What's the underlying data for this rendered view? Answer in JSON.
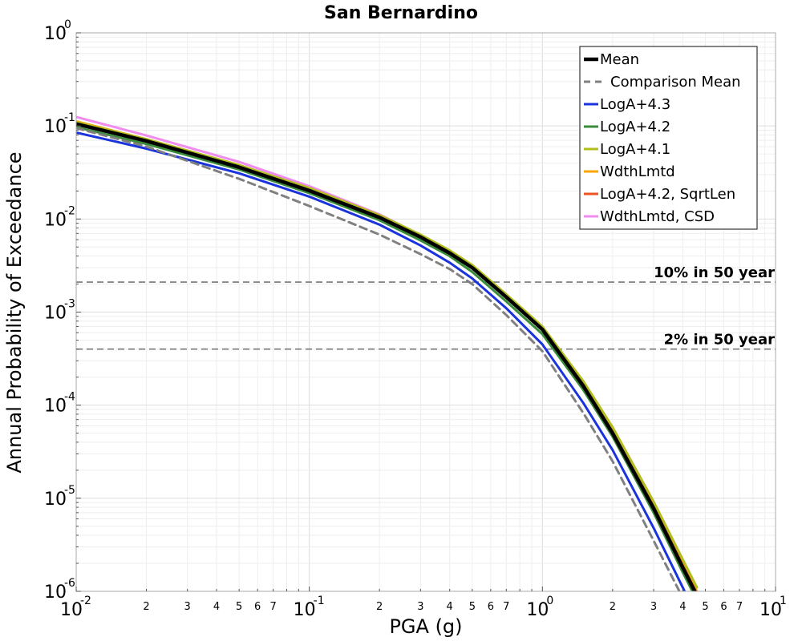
{
  "chart_data": {
    "type": "line",
    "title": "San Bernardino",
    "xlabel": "PGA (g)",
    "ylabel": "Annual Probability of Exceedance",
    "xscale": "log",
    "yscale": "log",
    "xlim": [
      0.01,
      10
    ],
    "ylim": [
      1e-06,
      1
    ],
    "grid": true,
    "legend_position": "top-right",
    "x_ticks": [
      {
        "base": "10",
        "exp": "-2"
      },
      {
        "base": "10",
        "exp": "-1"
      },
      {
        "base": "10",
        "exp": "0"
      },
      {
        "base": "10",
        "exp": "1"
      }
    ],
    "y_ticks": [
      {
        "base": "10",
        "exp": "0"
      },
      {
        "base": "10",
        "exp": "-1"
      },
      {
        "base": "10",
        "exp": "-2"
      },
      {
        "base": "10",
        "exp": "-3"
      },
      {
        "base": "10",
        "exp": "-4"
      },
      {
        "base": "10",
        "exp": "-5"
      },
      {
        "base": "10",
        "exp": "-6"
      }
    ],
    "x_minor_labels": [
      "2",
      "3",
      "4",
      "5",
      "6",
      "7"
    ],
    "reference_lines": [
      {
        "label": "10% in 50 year",
        "y": 0.0021,
        "color": "#777777"
      },
      {
        "label": "2% in 50 year",
        "y": 0.0004,
        "color": "#777777"
      }
    ],
    "series": [
      {
        "name": "WdthLmtd, CSD",
        "color": "#f08cf0",
        "dash": false,
        "x": [
          0.01,
          0.02,
          0.05,
          0.1,
          0.2,
          0.3,
          0.4,
          0.5,
          0.7,
          1.0,
          1.5,
          2.0,
          3.0,
          4.0,
          4.6
        ],
        "y": [
          0.125,
          0.079,
          0.041,
          0.0225,
          0.0112,
          0.0067,
          0.0045,
          0.0031,
          0.0015,
          0.00066,
          0.00016,
          5e-05,
          7.5e-06,
          1.8e-06,
          9e-07
        ]
      },
      {
        "name": "WdthLmtd",
        "color": "#ffa500",
        "dash": false,
        "x": [
          0.01,
          0.02,
          0.05,
          0.1,
          0.2,
          0.3,
          0.4,
          0.5,
          0.7,
          1.0,
          1.5,
          2.0,
          3.0,
          4.0,
          4.6
        ],
        "y": [
          0.112,
          0.072,
          0.038,
          0.0212,
          0.0108,
          0.0066,
          0.0045,
          0.0031,
          0.0015,
          0.00068,
          0.00017,
          5.5e-05,
          8.5e-06,
          2e-06,
          1e-06
        ]
      },
      {
        "name": "LogA+4.2, SqrtLen",
        "color": "#ee5522",
        "dash": false,
        "x": [
          0.01,
          0.02,
          0.05,
          0.1,
          0.2,
          0.3,
          0.4,
          0.5,
          0.7,
          1.0,
          1.5,
          2.0,
          3.0,
          4.0,
          4.6
        ],
        "y": [
          0.107,
          0.07,
          0.037,
          0.0207,
          0.0106,
          0.0065,
          0.0044,
          0.003,
          0.00145,
          0.00066,
          0.000165,
          5.3e-05,
          8.2e-06,
          1.9e-06,
          9.5e-07
        ]
      },
      {
        "name": "LogA+4.1",
        "color": "#b2be1e",
        "dash": false,
        "x": [
          0.01,
          0.02,
          0.05,
          0.1,
          0.2,
          0.3,
          0.4,
          0.5,
          0.7,
          1.0,
          1.5,
          2.0,
          3.0,
          4.0,
          4.6
        ],
        "y": [
          0.11,
          0.072,
          0.038,
          0.0215,
          0.011,
          0.0068,
          0.0046,
          0.0032,
          0.00155,
          0.0007,
          0.00018,
          5.8e-05,
          9.2e-06,
          2.2e-06,
          1.1e-06
        ]
      },
      {
        "name": "LogA+4.2",
        "color": "#3a8c3a",
        "dash": false,
        "x": [
          0.01,
          0.02,
          0.05,
          0.1,
          0.2,
          0.3,
          0.4,
          0.5,
          0.7,
          1.0,
          1.5,
          2.0,
          3.0,
          4.0,
          4.6
        ],
        "y": [
          0.097,
          0.064,
          0.034,
          0.019,
          0.0097,
          0.0059,
          0.004,
          0.0027,
          0.0013,
          0.00058,
          0.000145,
          4.6e-05,
          7e-06,
          1.6e-06,
          8e-07
        ]
      },
      {
        "name": "LogA+4.3",
        "color": "#1a33dd",
        "dash": false,
        "x": [
          0.01,
          0.02,
          0.05,
          0.1,
          0.2,
          0.3,
          0.4,
          0.5,
          0.7,
          1.0,
          1.5,
          2.0,
          3.0,
          4.0,
          4.5
        ],
        "y": [
          0.085,
          0.057,
          0.031,
          0.0174,
          0.0087,
          0.0052,
          0.0034,
          0.0023,
          0.0011,
          0.00045,
          0.000105,
          3.3e-05,
          4.8e-06,
          1.1e-06,
          6e-07
        ]
      },
      {
        "name": "Comparison Mean",
        "color": "#808080",
        "dash": true,
        "x": [
          0.01,
          0.02,
          0.05,
          0.1,
          0.2,
          0.3,
          0.4,
          0.5,
          0.7,
          1.0,
          1.5,
          2.0,
          3.0,
          4.0,
          4.3
        ],
        "y": [
          0.095,
          0.06,
          0.027,
          0.0138,
          0.0068,
          0.0042,
          0.0029,
          0.002,
          0.00093,
          0.00038,
          8.2e-05,
          2.5e-05,
          3.5e-06,
          8.5e-07,
          6e-07
        ]
      },
      {
        "name": "Mean",
        "color": "#000000",
        "dash": false,
        "x": [
          0.01,
          0.02,
          0.05,
          0.1,
          0.2,
          0.3,
          0.4,
          0.5,
          0.7,
          1.0,
          1.5,
          2.0,
          3.0,
          4.0,
          4.6
        ],
        "y": [
          0.105,
          0.069,
          0.036,
          0.0202,
          0.0104,
          0.0064,
          0.0043,
          0.003,
          0.00145,
          0.00065,
          0.00016,
          5e-05,
          7.8e-06,
          1.8e-06,
          9e-07
        ]
      }
    ],
    "legend_order": [
      "Mean",
      "Comparison Mean",
      "LogA+4.3",
      "LogA+4.2",
      "LogA+4.1",
      "WdthLmtd",
      "LogA+4.2, SqrtLen",
      "WdthLmtd, CSD"
    ]
  }
}
